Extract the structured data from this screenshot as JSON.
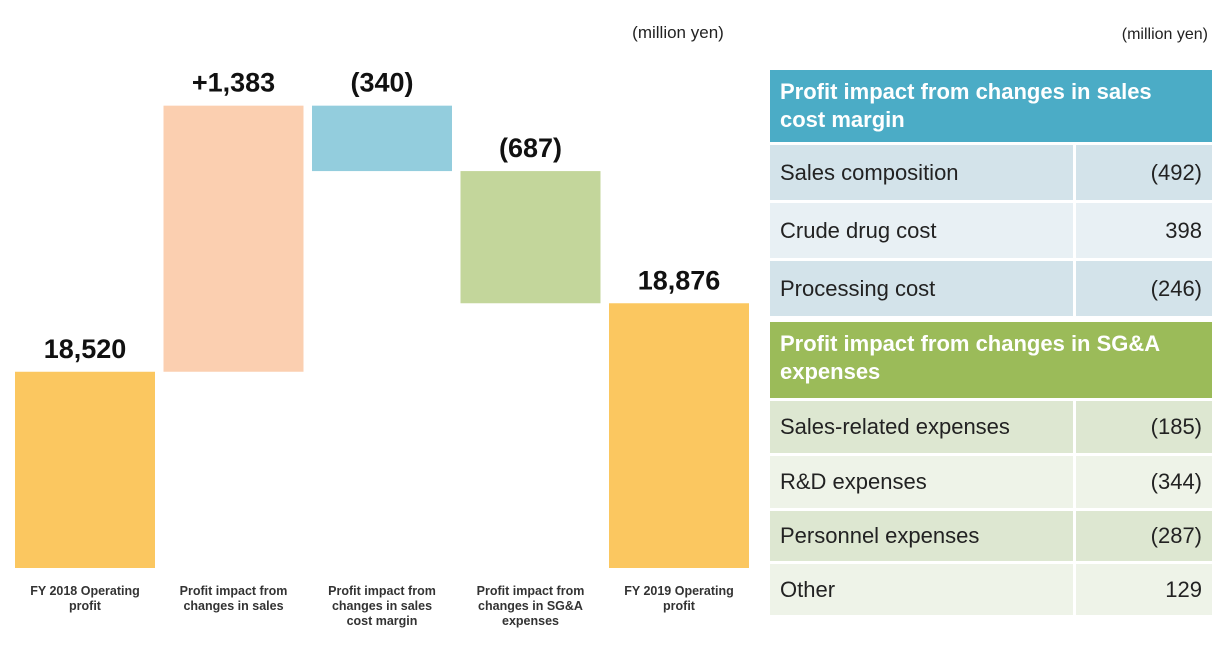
{
  "chart_data": {
    "type": "waterfall",
    "unit": "(million yen)",
    "categories": [
      "FY 2018 Operating profit",
      "Profit impact from changes in sales",
      "Profit impact from changes in sales cost margin",
      "Profit impact from changes in SG&A expenses",
      "FY 2019 Operating profit"
    ],
    "values": [
      18520,
      1383,
      -340,
      -687,
      18876
    ],
    "value_labels": [
      "18,520",
      "+1,383",
      "(340)",
      "(687)",
      "18,876"
    ],
    "is_total": [
      true,
      false,
      false,
      false,
      true
    ],
    "colors": [
      "#fbc760",
      "#fbcfb0",
      "#93cddd",
      "#c3d69b",
      "#fbc760"
    ],
    "ylim": [
      17500,
      20000
    ]
  },
  "table": {
    "unit": "(million yen)",
    "sections": [
      {
        "title": "Profit impact from changes in sales cost margin",
        "color": "#4bacc6",
        "row_colors": [
          "#d3e3ea",
          "#e8f0f4"
        ],
        "rows": [
          [
            "Sales composition",
            "(492)"
          ],
          [
            "Crude drug cost",
            "398"
          ],
          [
            "Processing cost",
            "(246)"
          ]
        ]
      },
      {
        "title": "Profit impact from changes in SG&A expenses",
        "color": "#9bbb59",
        "row_colors": [
          "#dde7d1",
          "#eef3e8"
        ],
        "rows": [
          [
            "Sales-related expenses",
            "(185)"
          ],
          [
            "R&D expenses",
            "(344)"
          ],
          [
            "Personnel expenses",
            "(287)"
          ],
          [
            "Other",
            "129"
          ]
        ]
      }
    ]
  }
}
